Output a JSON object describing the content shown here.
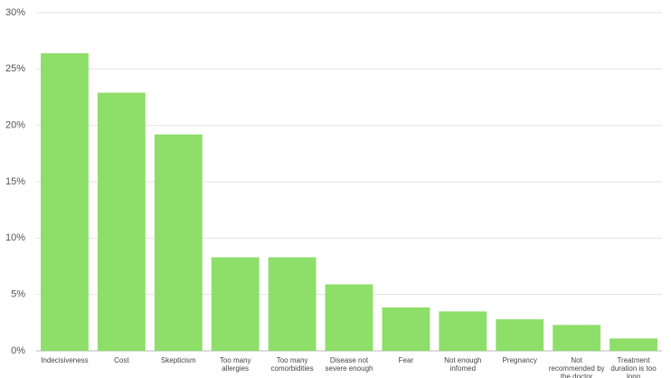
{
  "chart_data": {
    "type": "bar",
    "categories": [
      "Indecisiveness",
      "Cost",
      "Skepticism",
      "Too many allergies",
      "Too many comorbidities",
      "Disease not severe enough",
      "Fear",
      "Not enough infomed",
      "Pregnancy",
      "Not recommended by the doctor",
      "Treatment duration is too long"
    ],
    "values": [
      26.4,
      22.9,
      19.2,
      8.3,
      8.3,
      5.9,
      3.85,
      3.5,
      2.8,
      2.3,
      1.1
    ],
    "color": "#8ede6a",
    "ylim": [
      0,
      30
    ],
    "yticks": [
      {
        "value": 0,
        "label": "0%"
      },
      {
        "value": 5,
        "label": "5%"
      },
      {
        "value": 10,
        "label": "10%"
      },
      {
        "value": 15,
        "label": "15%"
      },
      {
        "value": 20,
        "label": "20%"
      },
      {
        "value": 25,
        "label": "25%"
      },
      {
        "value": 30,
        "label": "30%"
      }
    ],
    "grid": true
  }
}
